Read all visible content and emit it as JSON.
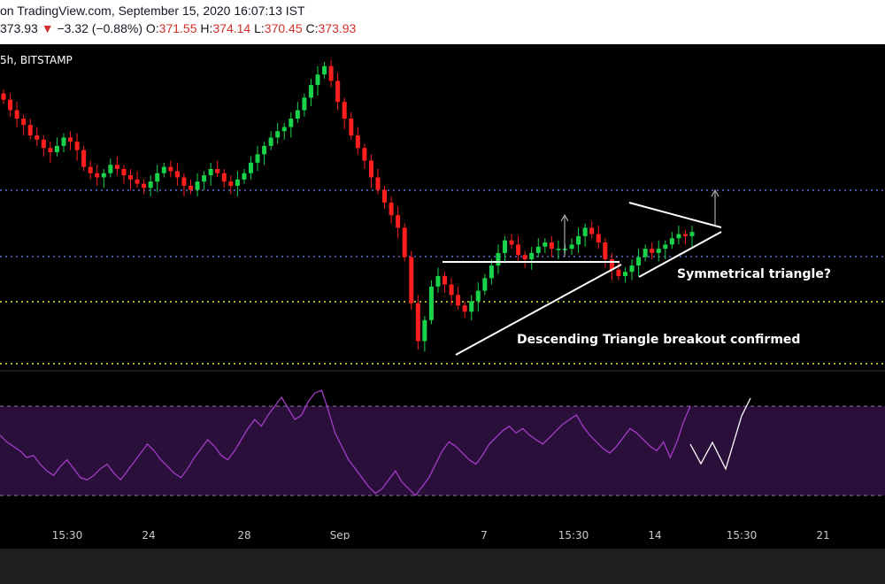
{
  "header": {
    "source_text": "on TradingView.com, September 15, 2020 16:07:13 IST",
    "last_price": "373.93",
    "down_arrow": "▼",
    "change": "−3.32 (−0.88%)",
    "o_label": "O:",
    "o_value": "371.55",
    "h_label": "H:",
    "h_value": "374.14",
    "l_label": "L:",
    "l_value": "370.45",
    "c_label": "C:",
    "c_value": "373.93"
  },
  "chart": {
    "symbol_label": "5h, BITSTAMP",
    "colors": {
      "up": "#26a69a",
      "down": "#ef5350",
      "candle_up": "#19d44a",
      "candle_down": "#ff1e1e",
      "rsi_line": "#a33cc8",
      "rsi_band": "#2a0f3a",
      "blue_level": "#5b6bd6",
      "yellow_level": "#e9e93a"
    }
  },
  "chart_data": {
    "type": "candlestick",
    "x_tick_labels": [
      "15:30",
      "24",
      "28",
      "Sep",
      "7",
      "15:30",
      "14",
      "15:30",
      "21"
    ],
    "horizontal_levels": [
      {
        "style": "dotted",
        "color": "blue",
        "role": "resistance-upper"
      },
      {
        "style": "dotted",
        "color": "blue",
        "role": "resistance-lower"
      },
      {
        "style": "dotted",
        "color": "yellow",
        "role": "support-upper"
      },
      {
        "style": "dotted",
        "color": "yellow",
        "role": "support-lower"
      }
    ],
    "annotations": [
      {
        "text": "Descending Triangle breakout confirmed"
      },
      {
        "text": "Symmetrical triangle?"
      }
    ],
    "close_series": [
      437,
      432,
      428,
      425,
      420,
      418,
      414,
      412,
      415,
      419,
      417,
      413,
      405,
      402,
      400,
      402,
      406,
      404,
      401,
      399,
      397,
      395,
      398,
      402,
      405,
      403,
      400,
      396,
      394,
      398,
      401,
      404,
      402,
      398,
      396,
      399,
      402,
      407,
      411,
      415,
      419,
      422,
      424,
      428,
      432,
      438,
      444,
      449,
      453,
      446,
      436,
      428,
      420,
      414,
      408,
      400,
      394,
      388,
      382,
      376,
      362,
      340,
      322,
      332,
      348,
      353,
      349,
      344,
      339,
      336,
      341,
      346,
      352,
      358,
      364,
      370,
      368,
      363,
      361,
      364,
      367,
      369,
      366,
      366,
      366,
      368,
      372,
      376,
      373,
      369,
      361,
      356,
      353,
      355,
      358,
      362,
      366,
      364,
      366,
      368,
      371,
      373,
      372,
      374
    ],
    "rsi_series": [
      57,
      54,
      52,
      50,
      47,
      48,
      44,
      41,
      39,
      43,
      46,
      42,
      38,
      37,
      39,
      42,
      44,
      40,
      37,
      41,
      45,
      49,
      53,
      50,
      46,
      43,
      40,
      38,
      42,
      47,
      51,
      55,
      52,
      48,
      46,
      50,
      55,
      60,
      64,
      61,
      66,
      70,
      74,
      69,
      64,
      66,
      72,
      76,
      77,
      68,
      58,
      52,
      46,
      42,
      38,
      34,
      31,
      33,
      37,
      41,
      36,
      33,
      30,
      34,
      38,
      44,
      50,
      54,
      52,
      49,
      46,
      44,
      48,
      53,
      56,
      59,
      61,
      58,
      60,
      57,
      55,
      53,
      56,
      59,
      62,
      64,
      66,
      61,
      57,
      54,
      51,
      49,
      52,
      56,
      60,
      58,
      55,
      52,
      50,
      54,
      47,
      54,
      63,
      70
    ],
    "rsi_band": [
      30,
      70
    ]
  }
}
